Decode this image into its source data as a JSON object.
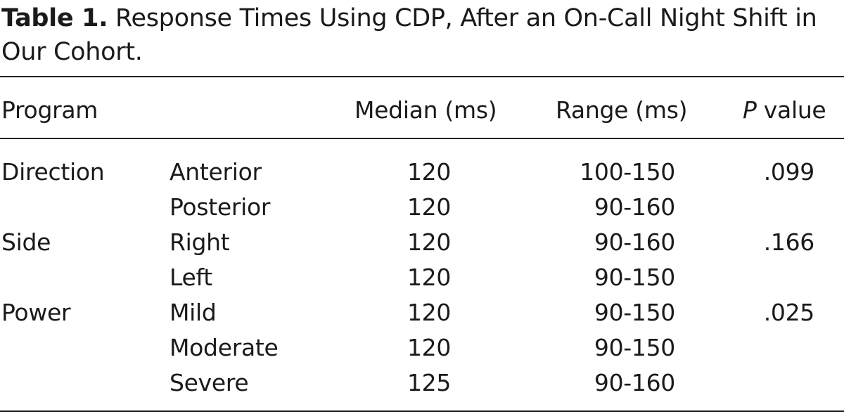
{
  "caption": {
    "label": "Table 1.",
    "text": "Response Times Using CDP, After an On-Call Night Shift in Our Cohort."
  },
  "headers": {
    "program": "Program",
    "median": "Median (ms)",
    "range": "Range (ms)",
    "p_italic": "P",
    "p_rest": " value"
  },
  "rows": [
    {
      "group": "Direction",
      "sub": "Anterior",
      "median": "120",
      "range": "100-150",
      "p": ".099"
    },
    {
      "group": "",
      "sub": "Posterior",
      "median": "120",
      "range": "90-160",
      "p": ""
    },
    {
      "group": "Side",
      "sub": "Right",
      "median": "120",
      "range": "90-160",
      "p": ".166"
    },
    {
      "group": "",
      "sub": "Left",
      "median": "120",
      "range": "90-150",
      "p": ""
    },
    {
      "group": "Power",
      "sub": "Mild",
      "median": "120",
      "range": "90-150",
      "p": ".025"
    },
    {
      "group": "",
      "sub": "Moderate",
      "median": "120",
      "range": "90-150",
      "p": ""
    },
    {
      "group": "",
      "sub": "Severe",
      "median": "125",
      "range": "90-160",
      "p": ""
    }
  ]
}
